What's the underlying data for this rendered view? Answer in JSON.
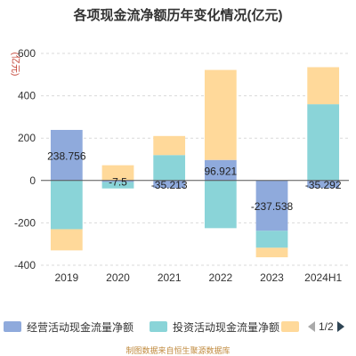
{
  "chart_data": {
    "type": "bar",
    "stacked": true,
    "title": "各项现金流净额历年变化情况(亿元)",
    "ylabel": "(亿元)",
    "categories": [
      "2019",
      "2020",
      "2021",
      "2022",
      "2023",
      "2024H1"
    ],
    "ylim": [
      -400,
      600
    ],
    "yticks": [
      "600",
      "400",
      "200",
      "0",
      "-200",
      "-400"
    ],
    "series": [
      {
        "name": "经营活动现金流量净额",
        "color": "#8FAADC",
        "values": [
          238.756,
          -7.5,
          -35.213,
          96.921,
          -237.538,
          -35.292
        ]
      },
      {
        "name": "投资活动现金流量净额",
        "color": "#8AD4D8",
        "values": [
          -230,
          -30,
          120,
          -225,
          -80,
          360
        ]
      },
      {
        "name": "",
        "color": "#FFD99A",
        "values": [
          -100,
          72,
          90,
          425,
          -45,
          175
        ]
      }
    ],
    "data_labels": [
      "238.756",
      "-7.5",
      "-35.213",
      "96.921",
      "-237.538",
      "-35.292"
    ],
    "grid": true
  },
  "legend": {
    "items": [
      "经营活动现金流量净额",
      "投资活动现金流量净额",
      ""
    ],
    "page": "1/2"
  },
  "source": "制图数据来自恒生聚源数据库"
}
